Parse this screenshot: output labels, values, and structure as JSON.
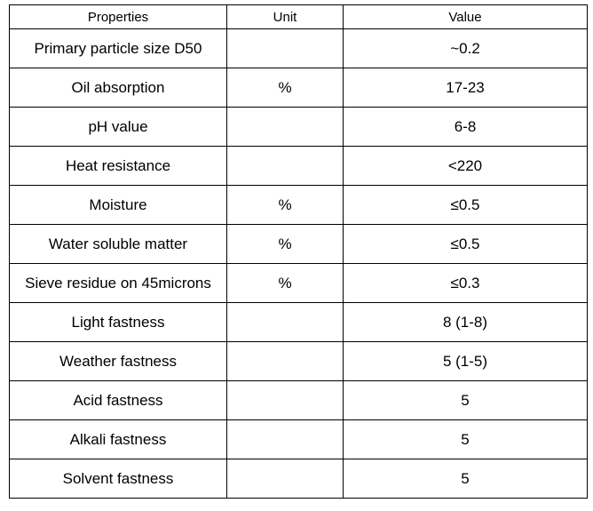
{
  "table": {
    "headers": [
      "Properties",
      "Unit",
      "Value"
    ],
    "rows": [
      {
        "property": "Primary particle size D50",
        "unit": "",
        "value": "~0.2"
      },
      {
        "property": "Oil absorption",
        "unit": "%",
        "value": "17-23"
      },
      {
        "property": "pH value",
        "unit": "",
        "value": "6-8"
      },
      {
        "property": "Heat resistance",
        "unit": "",
        "value": "<220"
      },
      {
        "property": "Moisture",
        "unit": "%",
        "value": "≤0.5"
      },
      {
        "property": "Water soluble matter",
        "unit": "%",
        "value": "≤0.5"
      },
      {
        "property": "Sieve residue on 45microns",
        "unit": "%",
        "value": "≤0.3"
      },
      {
        "property": "Light fastness",
        "unit": "",
        "value": "8 (1-8)"
      },
      {
        "property": "Weather fastness",
        "unit": "",
        "value": "5 (1-5)"
      },
      {
        "property": "Acid fastness",
        "unit": "",
        "value": "5"
      },
      {
        "property": "Alkali fastness",
        "unit": "",
        "value": "5"
      },
      {
        "property": "Solvent fastness",
        "unit": "",
        "value": "5"
      }
    ]
  }
}
